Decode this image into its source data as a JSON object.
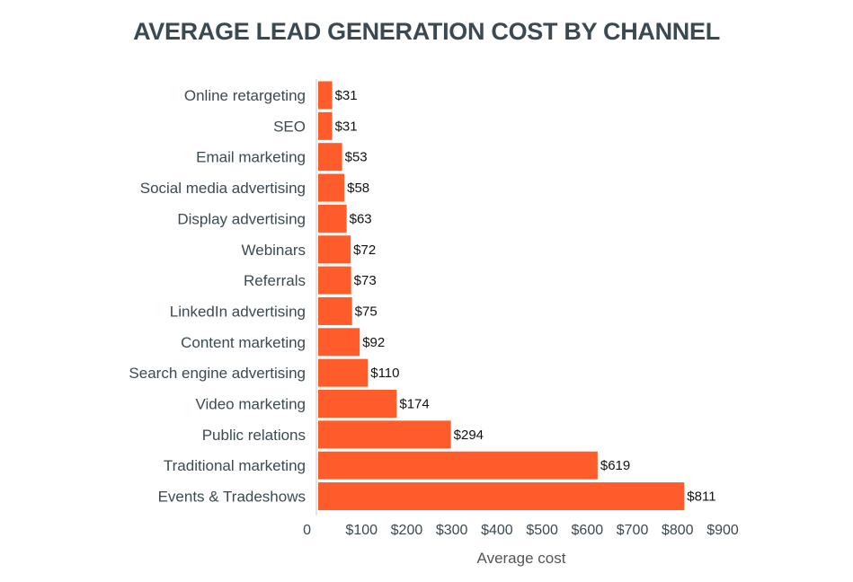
{
  "chart_data": {
    "type": "bar",
    "orientation": "horizontal",
    "title": "AVERAGE LEAD GENERATION COST BY CHANNEL",
    "xlabel": "Average cost",
    "ylabel": "",
    "categories": [
      "Online retargeting",
      "SEO",
      "Email marketing",
      "Social media advertising",
      "Display advertising",
      "Webinars",
      "Referrals",
      "LinkedIn advertising",
      "Content marketing",
      "Search engine advertising",
      "Video marketing",
      "Public relations",
      "Traditional marketing",
      "Events & Tradeshows"
    ],
    "values": [
      31,
      31,
      53,
      58,
      63,
      72,
      73,
      75,
      92,
      110,
      174,
      294,
      619,
      811
    ],
    "value_labels": [
      "$31",
      "$31",
      "$53",
      "$58",
      "$63",
      "$72",
      "$73",
      "$75",
      "$92",
      "$110",
      "$174",
      "$294",
      "$619",
      "$811"
    ],
    "xlim": [
      0,
      900
    ],
    "xticks": [
      0,
      100,
      200,
      300,
      400,
      500,
      600,
      700,
      800,
      900
    ],
    "xtick_labels": [
      "0",
      "$100",
      "$200",
      "$300",
      "$400",
      "$500",
      "$600",
      "$700",
      "$800",
      "$900"
    ],
    "grid": false,
    "legend": "none",
    "bar_color": "#ff5c2b"
  }
}
